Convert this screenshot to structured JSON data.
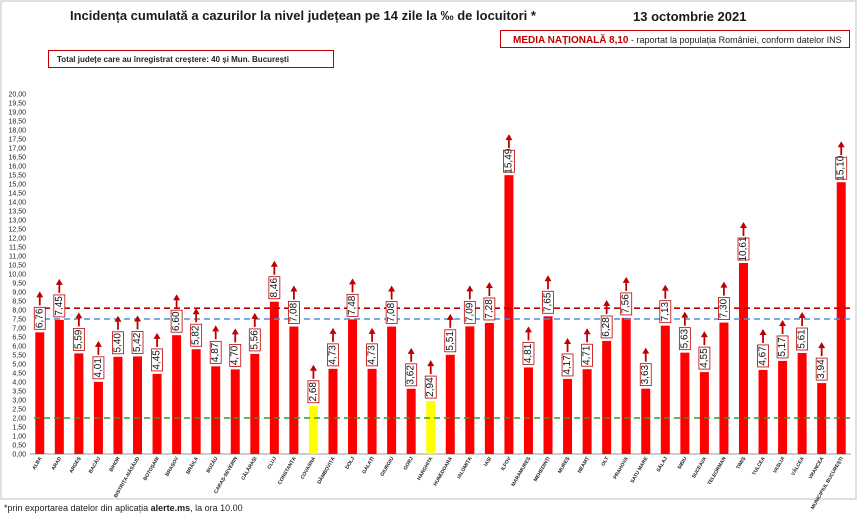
{
  "header": {
    "title": "Incidența cumulată a cazurilor la nivel județean pe 14 zile la ‰ de locuitori *",
    "date": "13 octombrie 2021"
  },
  "national_box": {
    "label": "MEDIA NAȚIONALĂ",
    "value": "8,10",
    "suffix": "- raportat la populația României, conform datelor INS"
  },
  "total_box": {
    "text": "Total județe care au înregistrat creștere: 40 și Mun. București"
  },
  "footnote": {
    "prefix": "*prin exportarea datelor din aplicația",
    "app": "alerte.ms",
    "suffix": ", la ora 10.00"
  },
  "colors": {
    "bar": "#ff0000",
    "bar_low": "#ffff00",
    "line_national": "#c00000",
    "line_blue": "#4a90d9",
    "line_green": "#2e9e2e",
    "arrow": "#c00000"
  },
  "chart_data": {
    "type": "bar",
    "ylim": [
      0,
      20
    ],
    "ytick_step": 0.5,
    "grid": false,
    "categories": [
      "ALBA",
      "ARAD",
      "ARGEȘ",
      "BACĂU",
      "BIHOR",
      "BISTRIȚA-NĂSĂUD",
      "BOTOȘANI",
      "BRAȘOV",
      "BRĂILA",
      "BUZĂU",
      "CARAȘ-SEVERIN",
      "CĂLĂRAȘI",
      "CLUJ",
      "CONSTANȚA",
      "COVASNA",
      "DÂMBOVIȚA",
      "DOLJ",
      "GALAȚI",
      "GIURGIU",
      "GORJ",
      "HARGHITA",
      "HUNEDOARA",
      "IALOMIȚA",
      "IAȘI",
      "ILFOV",
      "MARAMUREȘ",
      "MEHEDINȚI",
      "MUREȘ",
      "NEAMȚ",
      "OLT",
      "PRAHOVA",
      "SATU MARE",
      "SĂLAJ",
      "SIBIU",
      "SUCEAVA",
      "TELEORMAN",
      "TIMIȘ",
      "TULCEA",
      "VASLUI",
      "VÂLCEA",
      "VRANCEA",
      "MUNICIPIUL BUCUREȘTI"
    ],
    "values": [
      6.76,
      7.45,
      5.59,
      4.01,
      5.4,
      5.42,
      4.45,
      6.6,
      5.82,
      4.87,
      4.7,
      5.56,
      8.46,
      7.08,
      2.68,
      4.73,
      7.48,
      4.73,
      7.08,
      3.62,
      2.94,
      5.51,
      7.09,
      7.28,
      15.49,
      4.81,
      7.65,
      4.17,
      4.71,
      6.28,
      7.56,
      3.63,
      7.13,
      5.63,
      4.55,
      7.3,
      10.61,
      4.67,
      5.17,
      5.61,
      3.94,
      15.1
    ],
    "labels": [
      "6,76",
      "7,45",
      "5,59",
      "4,01",
      "5,40",
      "5,42",
      "4,45",
      "6,60",
      "5,82",
      "4,87",
      "4,70",
      "5,56",
      "8,46",
      "7,08",
      "2,68",
      "4,73",
      "7,48",
      "4,73",
      "7,08",
      "3,62",
      "2,94",
      "5,51",
      "7,09",
      "7,28",
      "15,49",
      "4,81",
      "7,65",
      "4,17",
      "4,71",
      "6,28",
      "7,56",
      "3,63",
      "7,13",
      "5,63",
      "4,55",
      "7,30",
      "10,61",
      "4,67",
      "5,17",
      "5,61",
      "3,94",
      "15,10"
    ],
    "low_threshold": 3,
    "reference_lines": [
      {
        "value": 8.1,
        "color": "#c00000"
      },
      {
        "value": 7.5,
        "color": "#4a90d9"
      },
      {
        "value": 2.0,
        "color": "#2e9e2e"
      }
    ]
  }
}
